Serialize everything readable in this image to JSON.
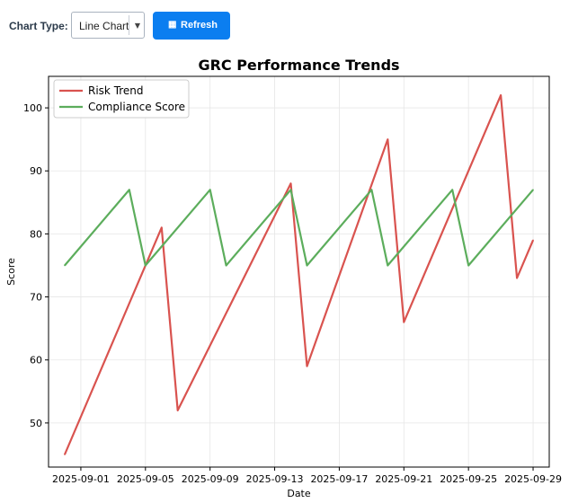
{
  "toolbar": {
    "chart_type_label": "Chart Type:",
    "chart_type_value": "Line Chart",
    "refresh_label": "Refresh",
    "refresh_icon": "refresh-icon",
    "button_color": "#0b7ef0"
  },
  "chart_data": {
    "type": "line",
    "title": "GRC Performance Trends",
    "xlabel": "Date",
    "ylabel": "Score",
    "ylim": [
      43,
      105
    ],
    "yticks": [
      50,
      60,
      70,
      80,
      90,
      100
    ],
    "xticks": [
      "2025-09-01",
      "2025-09-05",
      "2025-09-09",
      "2025-09-13",
      "2025-09-17",
      "2025-09-21",
      "2025-09-25",
      "2025-09-29"
    ],
    "xlim": [
      "2025-08-30",
      "2025-09-30"
    ],
    "grid": true,
    "legend": "top-left",
    "series": [
      {
        "name": "Risk Trend",
        "color": "#d9534f",
        "points": [
          [
            "2025-08-31",
            45
          ],
          [
            "2025-09-06",
            81
          ],
          [
            "2025-09-07",
            52
          ],
          [
            "2025-09-14",
            88
          ],
          [
            "2025-09-15",
            59
          ],
          [
            "2025-09-20",
            95
          ],
          [
            "2025-09-21",
            66
          ],
          [
            "2025-09-27",
            102
          ],
          [
            "2025-09-28",
            73
          ],
          [
            "2025-09-29",
            79
          ]
        ]
      },
      {
        "name": "Compliance Score",
        "color": "#5cad5c",
        "points": [
          [
            "2025-08-31",
            75
          ],
          [
            "2025-09-04",
            87
          ],
          [
            "2025-09-05",
            75
          ],
          [
            "2025-09-09",
            87
          ],
          [
            "2025-09-10",
            75
          ],
          [
            "2025-09-14",
            87
          ],
          [
            "2025-09-15",
            75
          ],
          [
            "2025-09-19",
            87
          ],
          [
            "2025-09-20",
            75
          ],
          [
            "2025-09-24",
            87
          ],
          [
            "2025-09-25",
            75
          ],
          [
            "2025-09-29",
            87
          ]
        ]
      }
    ]
  }
}
